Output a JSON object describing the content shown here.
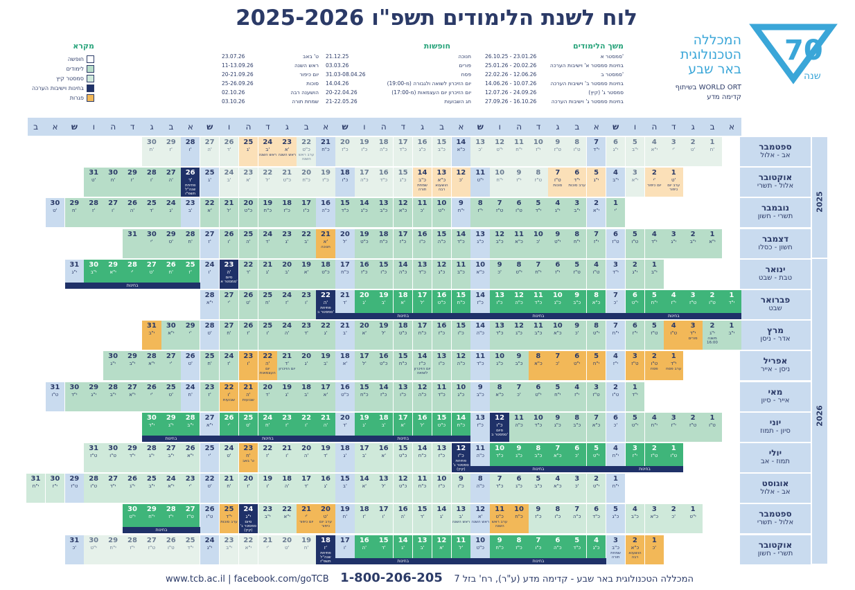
{
  "title": "לוח לשנת הלימודים תשפ\"ו 2025-2026",
  "logo": {
    "text": "שנה",
    "number": "70"
  },
  "college": {
    "line1": "המכללה",
    "line2": "הטכנולוגית",
    "line3": "באר שבע"
  },
  "partner": {
    "line1": "בשיתוף WORLD ORT",
    "line2": "קדימה מדע"
  },
  "schedule": {
    "title": "משך הלימודים",
    "rows": [
      {
        "label": "סמסטר א'",
        "dates": "26.10.25 - 23.01.26"
      },
      {
        "label": "בחינות סמסטר א' וישיבות הערכה",
        "dates": "25.01.26 - 20.02.26"
      },
      {
        "label": "סמסטר ב'",
        "dates": "22.02.26 - 12.06.26"
      },
      {
        "label": "בחינות סמסטר ב' וישיבות הערכה",
        "dates": "14.06.26 - 10.07.26"
      },
      {
        "label": "סמסטר ג' (קיץ)",
        "dates": "12.07.26 - 24.09.26"
      },
      {
        "label": "בחינות סמסטר ג' וישיבות הערכה",
        "dates": "27.09.26 - 16.10.26"
      }
    ]
  },
  "holidays": {
    "title": "חופשות",
    "col1": [
      {
        "label": "חנוכה",
        "dates": "21.12.25"
      },
      {
        "label": "פורים",
        "dates": "03.03.26"
      },
      {
        "label": "פסח",
        "dates": "31.03-08.04.26"
      },
      {
        "label": "יום הזיכרון לשואה ולגבורה (מ-19:00)",
        "dates": "14.04.26"
      },
      {
        "label": "יום הזיכרון יום העצמאות (מ-17:00)",
        "dates": "20-22.04.26"
      },
      {
        "label": "חג השבועות",
        "dates": "21-22.05.26"
      }
    ],
    "col2": [
      {
        "label": "ט' באב",
        "dates": "23.07.26"
      },
      {
        "label": "ראש השנה",
        "dates": "11-13.09.26"
      },
      {
        "label": "יום כיפור",
        "dates": "20-21.09.26"
      },
      {
        "label": "סוכות",
        "dates": "25-26.09.26"
      },
      {
        "label": "הושענה רבה",
        "dates": "02.10.26"
      },
      {
        "label": "שמחת תורה",
        "dates": "03.10.26"
      }
    ]
  },
  "legend": {
    "title": "מקרא",
    "items": [
      {
        "label": "חופשה",
        "color": "#ffffff"
      },
      {
        "label": "לימודים",
        "color": "#b7ddc8"
      },
      {
        "label": "סמסטר קיץ",
        "color": "#cfe9da"
      },
      {
        "label": "בחינות וישיבות הערכה",
        "color": "#1f3168"
      },
      {
        "label": "פגרות",
        "color": "#f2b858"
      }
    ]
  },
  "day_header": [
    "א",
    "ב",
    "ג",
    "ד",
    "ה",
    "ו",
    "ש",
    "א",
    "ב",
    "ג",
    "ד",
    "ה",
    "ו",
    "ש",
    "א",
    "ב",
    "ג",
    "ד",
    "ה",
    "ו",
    "ש",
    "א",
    "ב",
    "ג",
    "ד",
    "ה",
    "ו",
    "ש",
    "א",
    "ב",
    "ג",
    "ד",
    "ה",
    "ו",
    "ש",
    "א",
    "ב"
  ],
  "years": [
    "2025",
    "2026"
  ],
  "months": [
    {
      "name": "ספטמבר",
      "hebrew": "אב - אלול",
      "start": 1,
      "days": 30,
      "hd": [
        "ח'",
        "ט'",
        "י'",
        "י\"א",
        "י\"ב",
        "י\"ג",
        "י\"ד",
        "ט\"ו",
        "ט\"ז",
        "י\"ז",
        "י\"ח",
        "י\"ט",
        "כ'",
        "כ\"א",
        "כ\"ב",
        "כ\"ג",
        "כ\"ד",
        "כ\"ה",
        "כ\"ו",
        "כ\"ז",
        "כ\"ח",
        "כ\"ט",
        "א'",
        "ב'",
        "ג'",
        "ד'",
        "ה'",
        "ו'",
        "ז'",
        "ח'"
      ],
      "types": "LLLLLLSLLLLLLSLLLLLLSLHHHLLSLL",
      "events": {
        "22": "ערב ראש השנה",
        "23": "ראש השנה",
        "24": "ראש השנה"
      }
    },
    {
      "name": "אוקטובר",
      "hebrew": "אלול - תשרי",
      "start": 3,
      "days": 31,
      "hd": [
        "ט'",
        "י'",
        "י\"א",
        "י\"ב",
        "י\"ג",
        "י\"ד",
        "ט\"ו",
        "ט\"ז",
        "י\"ז",
        "י\"ח",
        "י\"ט",
        "כ'",
        "כ\"א",
        "כ\"ב",
        "כ\"ג",
        "כ\"ד",
        "כ\"ה",
        "כ\"ו",
        "כ\"ז",
        "כ\"ח",
        "כ\"ט",
        "ל'",
        "א'",
        "ב'",
        "ג'",
        "ד'",
        "ה'",
        "ו'",
        "ז'",
        "ח'",
        "ט'"
      ],
      "types": "HHLSHHHLLLSHHHLLLSLLLLLLSNRRRRR",
      "events": {
        "1": "ערב יום כיפור",
        "2": "יום כיפור",
        "6": "ערב סוכות",
        "7": "סוכות",
        "13": "הושענא רבה",
        "14": "שמחת תורה",
        "26": "פתיחת שנה\"ל תשפ\"ו"
      }
    },
    {
      "name": "נובמבר",
      "hebrew": "תשרי - חשון",
      "start": 6,
      "days": 30,
      "hd": [
        "י'",
        "י\"א",
        "י\"ב",
        "י\"ג",
        "י\"ד",
        "ט\"ו",
        "ט\"ז",
        "י\"ז",
        "י\"ח",
        "י\"ט",
        "כ'",
        "כ\"א",
        "כ\"ב",
        "כ\"ג",
        "כ\"ד",
        "כ\"ה",
        "כ\"ו",
        "כ\"ז",
        "כ\"ח",
        "כ\"ט",
        "ל'",
        "א'",
        "ב'",
        "ג'",
        "ד'",
        "ה'",
        "ו'",
        "ז'",
        "ח'",
        "ט'"
      ],
      "types": "RSRRRRRRSRRRRRRSRRRRRRSRRRRRRS",
      "events": {}
    },
    {
      "name": "דצמבר",
      "hebrew": "חשון - כסלו",
      "start": 1,
      "days": 31,
      "hd": [
        "י\"א",
        "י\"ב",
        "י\"ג",
        "י\"ד",
        "ט\"ו",
        "ט\"ז",
        "י\"ז",
        "י\"ח",
        "י\"ט",
        "כ'",
        "כ\"א",
        "כ\"ב",
        "כ\"ג",
        "כ\"ד",
        "כ\"ה",
        "כ\"ו",
        "כ\"ז",
        "כ\"ח",
        "כ\"ט",
        "ל'",
        "א'",
        "ב'",
        "ג'",
        "ד'",
        "ה'",
        "ו'",
        "ז'",
        "ח'",
        "ט'",
        "י'"
      ],
      "types": "RRRRRSRRRRRRSRRRRRRSORRRRRSRRRR",
      "events": {
        "21": "חנוכה"
      }
    },
    {
      "name": "ינואר",
      "hebrew": "טבת - שבט",
      "start": 4,
      "days": 31,
      "hd": [
        "י\"ב",
        "י\"ג",
        "י\"ד",
        "ט\"ו",
        "ט\"ז",
        "י\"ז",
        "י\"ח",
        "י\"ט",
        "כ'",
        "כ\"א",
        "כ\"ב",
        "כ\"ג",
        "כ\"ד",
        "כ\"ה",
        "כ\"ו",
        "כ\"ז",
        "כ\"ח",
        "כ\"ט",
        "א'",
        "ב'",
        "ג'",
        "ד'",
        "ה'",
        "ו'",
        "ז'",
        "ח'",
        "ט'",
        "י'",
        "י\"א",
        "י\"ב",
        "י\"ג"
      ],
      "types": "RRSRRRRRRSRRRRRRSRRRRRNSEEEEEES",
      "events": {
        "23": "סיום סמסטר א'"
      }
    },
    {
      "name": "פברואר",
      "hebrew": "שבט",
      "start": 0,
      "days": 28,
      "hd": [
        "י\"ד",
        "ט\"ו",
        "ט\"ז",
        "י\"ז",
        "י\"ח",
        "י\"ט",
        "כ'",
        "כ\"א",
        "כ\"ב",
        "כ\"ג",
        "כ\"ד",
        "כ\"ה",
        "כ\"ו",
        "כ\"ז",
        "כ\"ח",
        "כ\"ט",
        "ל'",
        "א'",
        "ב'",
        "ג'",
        "ד'",
        "ה'",
        "ו'",
        "ז'",
        "ח'",
        "ט'",
        "י'",
        "י\"א"
      ],
      "types": "EEEEEESEEEEEESEEEEEESNRRRRRS",
      "events": {
        "22": "פתיחת סמסטר ב'"
      }
    },
    {
      "name": "מרץ",
      "hebrew": "אדר - ניסן",
      "start": 0,
      "days": 31,
      "hd": [
        "י\"ב",
        "י\"ג",
        "י\"ד",
        "ט\"ו",
        "ט\"ז",
        "י\"ז",
        "י\"ח",
        "י\"ט",
        "כ'",
        "כ\"א",
        "כ\"ב",
        "כ\"ג",
        "כ\"ד",
        "כ\"ה",
        "כ\"ו",
        "כ\"ז",
        "כ\"ח",
        "כ\"ט",
        "ל'",
        "א'",
        "ב'",
        "ג'",
        "ד'",
        "ה'",
        "ו'",
        "ז'",
        "ח'",
        "ט'",
        "י'",
        "י\"א",
        "י\"ב",
        "י\"ג"
      ],
      "types": "RROORRSRRRRRRSRRRRRRSRRRRRRSRRO",
      "events": {
        "2": "משנה 16:00",
        "3": "פורים"
      }
    },
    {
      "name": "אפריל",
      "hebrew": "ניסן - אייר",
      "start": 3,
      "days": 30,
      "hd": [
        "י\"ד",
        "ט\"ו",
        "ט\"ז",
        "י\"ז",
        "י\"ח",
        "י\"ט",
        "כ'",
        "כ\"א",
        "כ\"ב",
        "כ\"ג",
        "כ\"ד",
        "כ\"ה",
        "כ\"ו",
        "כ\"ז",
        "כ\"ח",
        "כ\"ט",
        "ל'",
        "א'",
        "ב'",
        "ג'",
        "ד'",
        "ה'",
        "ו'",
        "ז'",
        "ח'",
        "ט'",
        "י'",
        "י\"א",
        "י\"ב",
        "י\"ג"
      ],
      "types": "OOOSOOOORRSRRRRRRSRRROORRSRRRR",
      "events": {
        "1": "ערב פסח",
        "2": "פסח",
        "14": "יום הזיכרון לשואה",
        "21": "יום הזיכרון",
        "22": "יום העצמאות"
      }
    },
    {
      "name": "מאי",
      "hebrew": "אייר - סיון",
      "start": 5,
      "days": 31,
      "hd": [
        "י\"ד",
        "ט\"ו",
        "ט\"ז",
        "י\"ז",
        "י\"ח",
        "י\"ט",
        "כ'",
        "כ\"א",
        "כ\"ב",
        "כ\"ג",
        "כ\"ד",
        "כ\"ה",
        "כ\"ו",
        "כ\"ז",
        "כ\"ח",
        "כ\"ט",
        "א'",
        "ב'",
        "ג'",
        "ד'",
        "ה'",
        "ו'",
        "ז'",
        "ח'",
        "ט'",
        "י'",
        "י\"א",
        "י\"ב",
        "י\"ג",
        "י\"ד",
        "ט\"ו"
      ],
      "types": "RSRRRRRRSRRRRRRSRRRROORSRRRRRRS",
      "events": {
        "21": "שבועות",
        "22": "שבועות"
      }
    },
    {
      "name": "יוני",
      "hebrew": "סיון - תמוז",
      "start": 1,
      "days": 30,
      "hd": [
        "ט\"ו",
        "ט\"ז",
        "י\"ז",
        "י\"ח",
        "י\"ט",
        "כ'",
        "כ\"א",
        "כ\"ב",
        "כ\"ג",
        "כ\"ד",
        "כ\"ה",
        "כ\"ו",
        "כ\"ז",
        "כ\"ח",
        "כ\"ט",
        "ל'",
        "א'",
        "ב'",
        "ג'",
        "ד'",
        "ה'",
        "ו'",
        "ז'",
        "ח'",
        "ט'",
        "י'",
        "י\"א",
        "י\"ב",
        "י\"ג",
        "י\"ד"
      ],
      "types": "RRRRRSRRRRRNSEEEEEESEEEEEESEEE",
      "events": {
        "12": "סיום סמסטר ב'"
      }
    },
    {
      "name": "יולי",
      "hebrew": "תמוז - אב",
      "start": 3,
      "days": 31,
      "hd": [
        "ט\"ו",
        "ט\"ז",
        "י\"ז",
        "י\"ח",
        "י\"ט",
        "כ'",
        "כ\"א",
        "כ\"ב",
        "כ\"ג",
        "כ\"ד",
        "כ\"ה",
        "כ\"ו",
        "כ\"ז",
        "כ\"ח",
        "כ\"ט",
        "א'",
        "ב'",
        "ג'",
        "ד'",
        "ה'",
        "ו'",
        "ז'",
        "ח'",
        "ט'",
        "י'",
        "י\"א",
        "י\"ב",
        "י\"ג",
        "י\"ד",
        "ט\"ו",
        "ט\"ז"
      ],
      "types": "EEESEEEEEESNTTTTTSTTTTOTSTTTTTT",
      "events": {
        "12": "פתיחת סמסטר ג' (קיץ)",
        "23": "ט' באב"
      }
    },
    {
      "name": "אוגוסט",
      "hebrew": "אב - אלול",
      "start": 6,
      "days": 31,
      "hd": [
        "י\"ח",
        "י\"ט",
        "כ'",
        "כ\"א",
        "כ\"ב",
        "כ\"ג",
        "כ\"ד",
        "כ\"ה",
        "כ\"ו",
        "כ\"ז",
        "כ\"ח",
        "כ\"ט",
        "ל'",
        "א'",
        "ב'",
        "ג'",
        "ד'",
        "ה'",
        "ו'",
        "ז'",
        "ח'",
        "ט'",
        "י'",
        "י\"א",
        "י\"ב",
        "י\"ג",
        "י\"ד",
        "ט\"ו",
        "ט\"ז",
        "י\"ז",
        "י\"ח"
      ],
      "types": "STTTTTTSTTTTTTSTTTTTTSTTTTTTSTT",
      "events": {}
    },
    {
      "name": "ספטמבר",
      "hebrew": "אלול - תשרי",
      "start": 2,
      "days": 30,
      "hd": [
        "י\"ט",
        "כ'",
        "כ\"א",
        "כ\"ב",
        "כ\"ג",
        "כ\"ד",
        "כ\"ה",
        "כ\"ו",
        "כ\"ז",
        "כ\"ח",
        "כ\"ט",
        "א'",
        "ב'",
        "ג'",
        "ד'",
        "ה'",
        "ו'",
        "ז'",
        "ח'",
        "ט'",
        "י'",
        "י\"א",
        "י\"ב",
        "י\"ג",
        "י\"ד",
        "ט\"ו",
        "ט\"ז",
        "י\"ז",
        "י\"ח",
        "י\"ט"
      ],
      "types": "TTTTSTTTTOOSTTTTTTSOOTTNOSEEEE",
      "events": {
        "11": "ערב ראש השנה",
        "12": "ראש השנה",
        "13": "ראש השנה",
        "20": "ערב יום כיפור",
        "21": "יום כיפור",
        "24": "סיום סמסטר ג' (קיץ)",
        "25": "ערב סוכות"
      }
    },
    {
      "name": "אוקטובר",
      "hebrew": "תשרי - חשון",
      "start": 4,
      "days": 31,
      "hd": [
        "כ'",
        "כ\"א",
        "כ\"ב",
        "כ\"ג",
        "כ\"ד",
        "כ\"ה",
        "כ\"ו",
        "כ\"ז",
        "כ\"ח",
        "כ\"ט",
        "ל'",
        "א'",
        "ב'",
        "ג'",
        "ד'",
        "ה'",
        "ו'",
        "ז'",
        "ח'",
        "ט'",
        "י'",
        "י\"א",
        "י\"ב",
        "י\"ג",
        "י\"ד",
        "ט\"ו",
        "ט\"ז",
        "י\"ז",
        "י\"ח",
        "י\"ט",
        "כ'"
      ],
      "types": "OOSEEEEEESEEEEEESNLLLLLSLLLLLLS",
      "events": {
        "2": "הושענא רבה",
        "3": "שמחת תורה",
        "18": "פתיחת שנה\"ל תשפ\"ז"
      }
    }
  ],
  "exam_label": "בחינות",
  "footer": {
    "address": "המכללה הטכנולוגית באר שבע - קדימה מדע (ע\"ר), רח' בזל 7",
    "phone": "1-800-206-205",
    "links": "www.tcb.ac.il | facebook.com/goTCB"
  }
}
